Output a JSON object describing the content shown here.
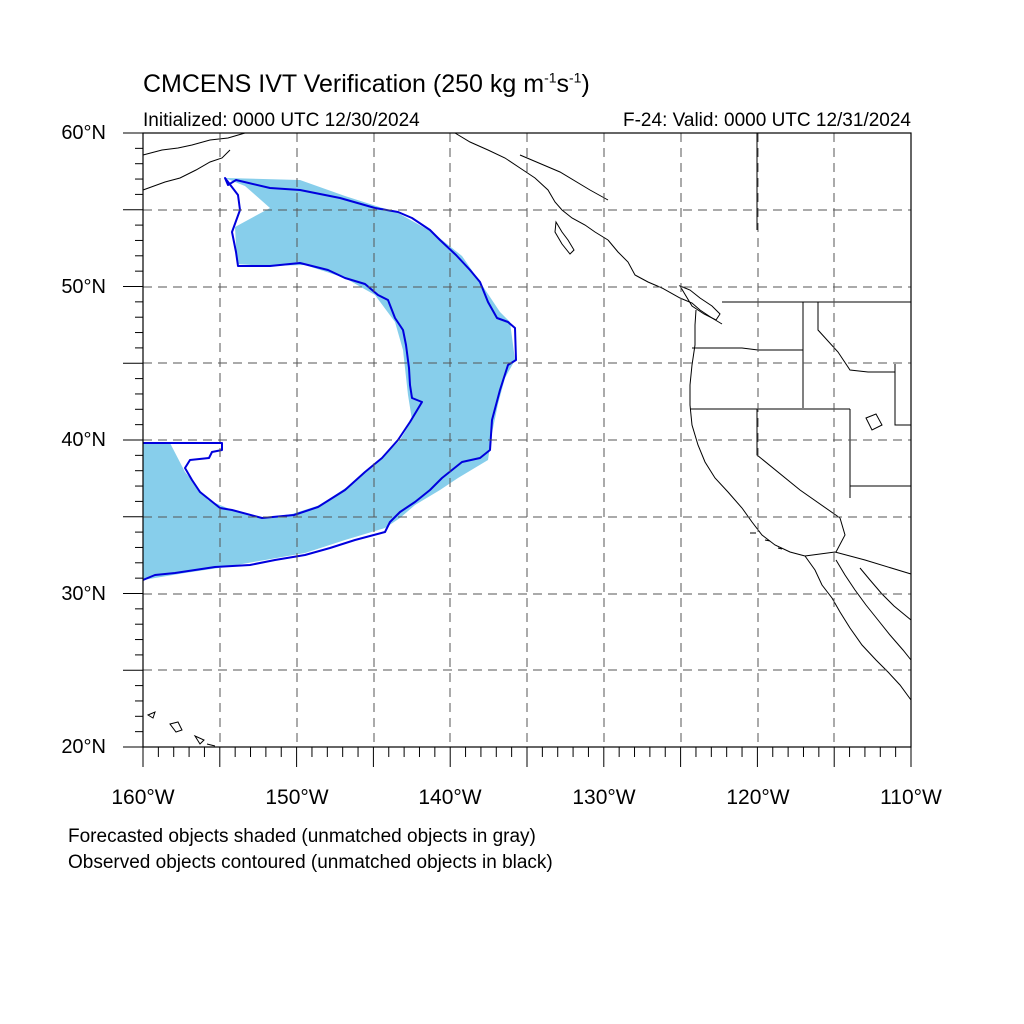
{
  "header": {
    "title_main": "CMCENS IVT Verification (250 kg m",
    "title_exp1": "-1",
    "title_s": "s",
    "title_exp2": "-1",
    "title_close": ")",
    "initialized": "Initialized: 0000 UTC 12/30/2024",
    "valid": "F-24: Valid: 0000 UTC 12/31/2024"
  },
  "axes": {
    "lat_labels": [
      "60°N",
      "50°N",
      "40°N",
      "30°N",
      "20°N"
    ],
    "lon_labels": [
      "160°W",
      "150°W",
      "140°W",
      "130°W",
      "120°W",
      "110°W"
    ],
    "lat_range": [
      20,
      60
    ],
    "lon_range": [
      -160,
      -110
    ],
    "grid": "dashed every 5°"
  },
  "legend": {
    "line1": "Forecasted objects shaded (unmatched objects in gray)",
    "line2": "Observed objects contoured (unmatched objects in black)"
  },
  "colors": {
    "forecast_fill": "#87ceeb",
    "observed_contour": "#0000dd",
    "coastline": "#000000",
    "grid": "#555555"
  }
}
